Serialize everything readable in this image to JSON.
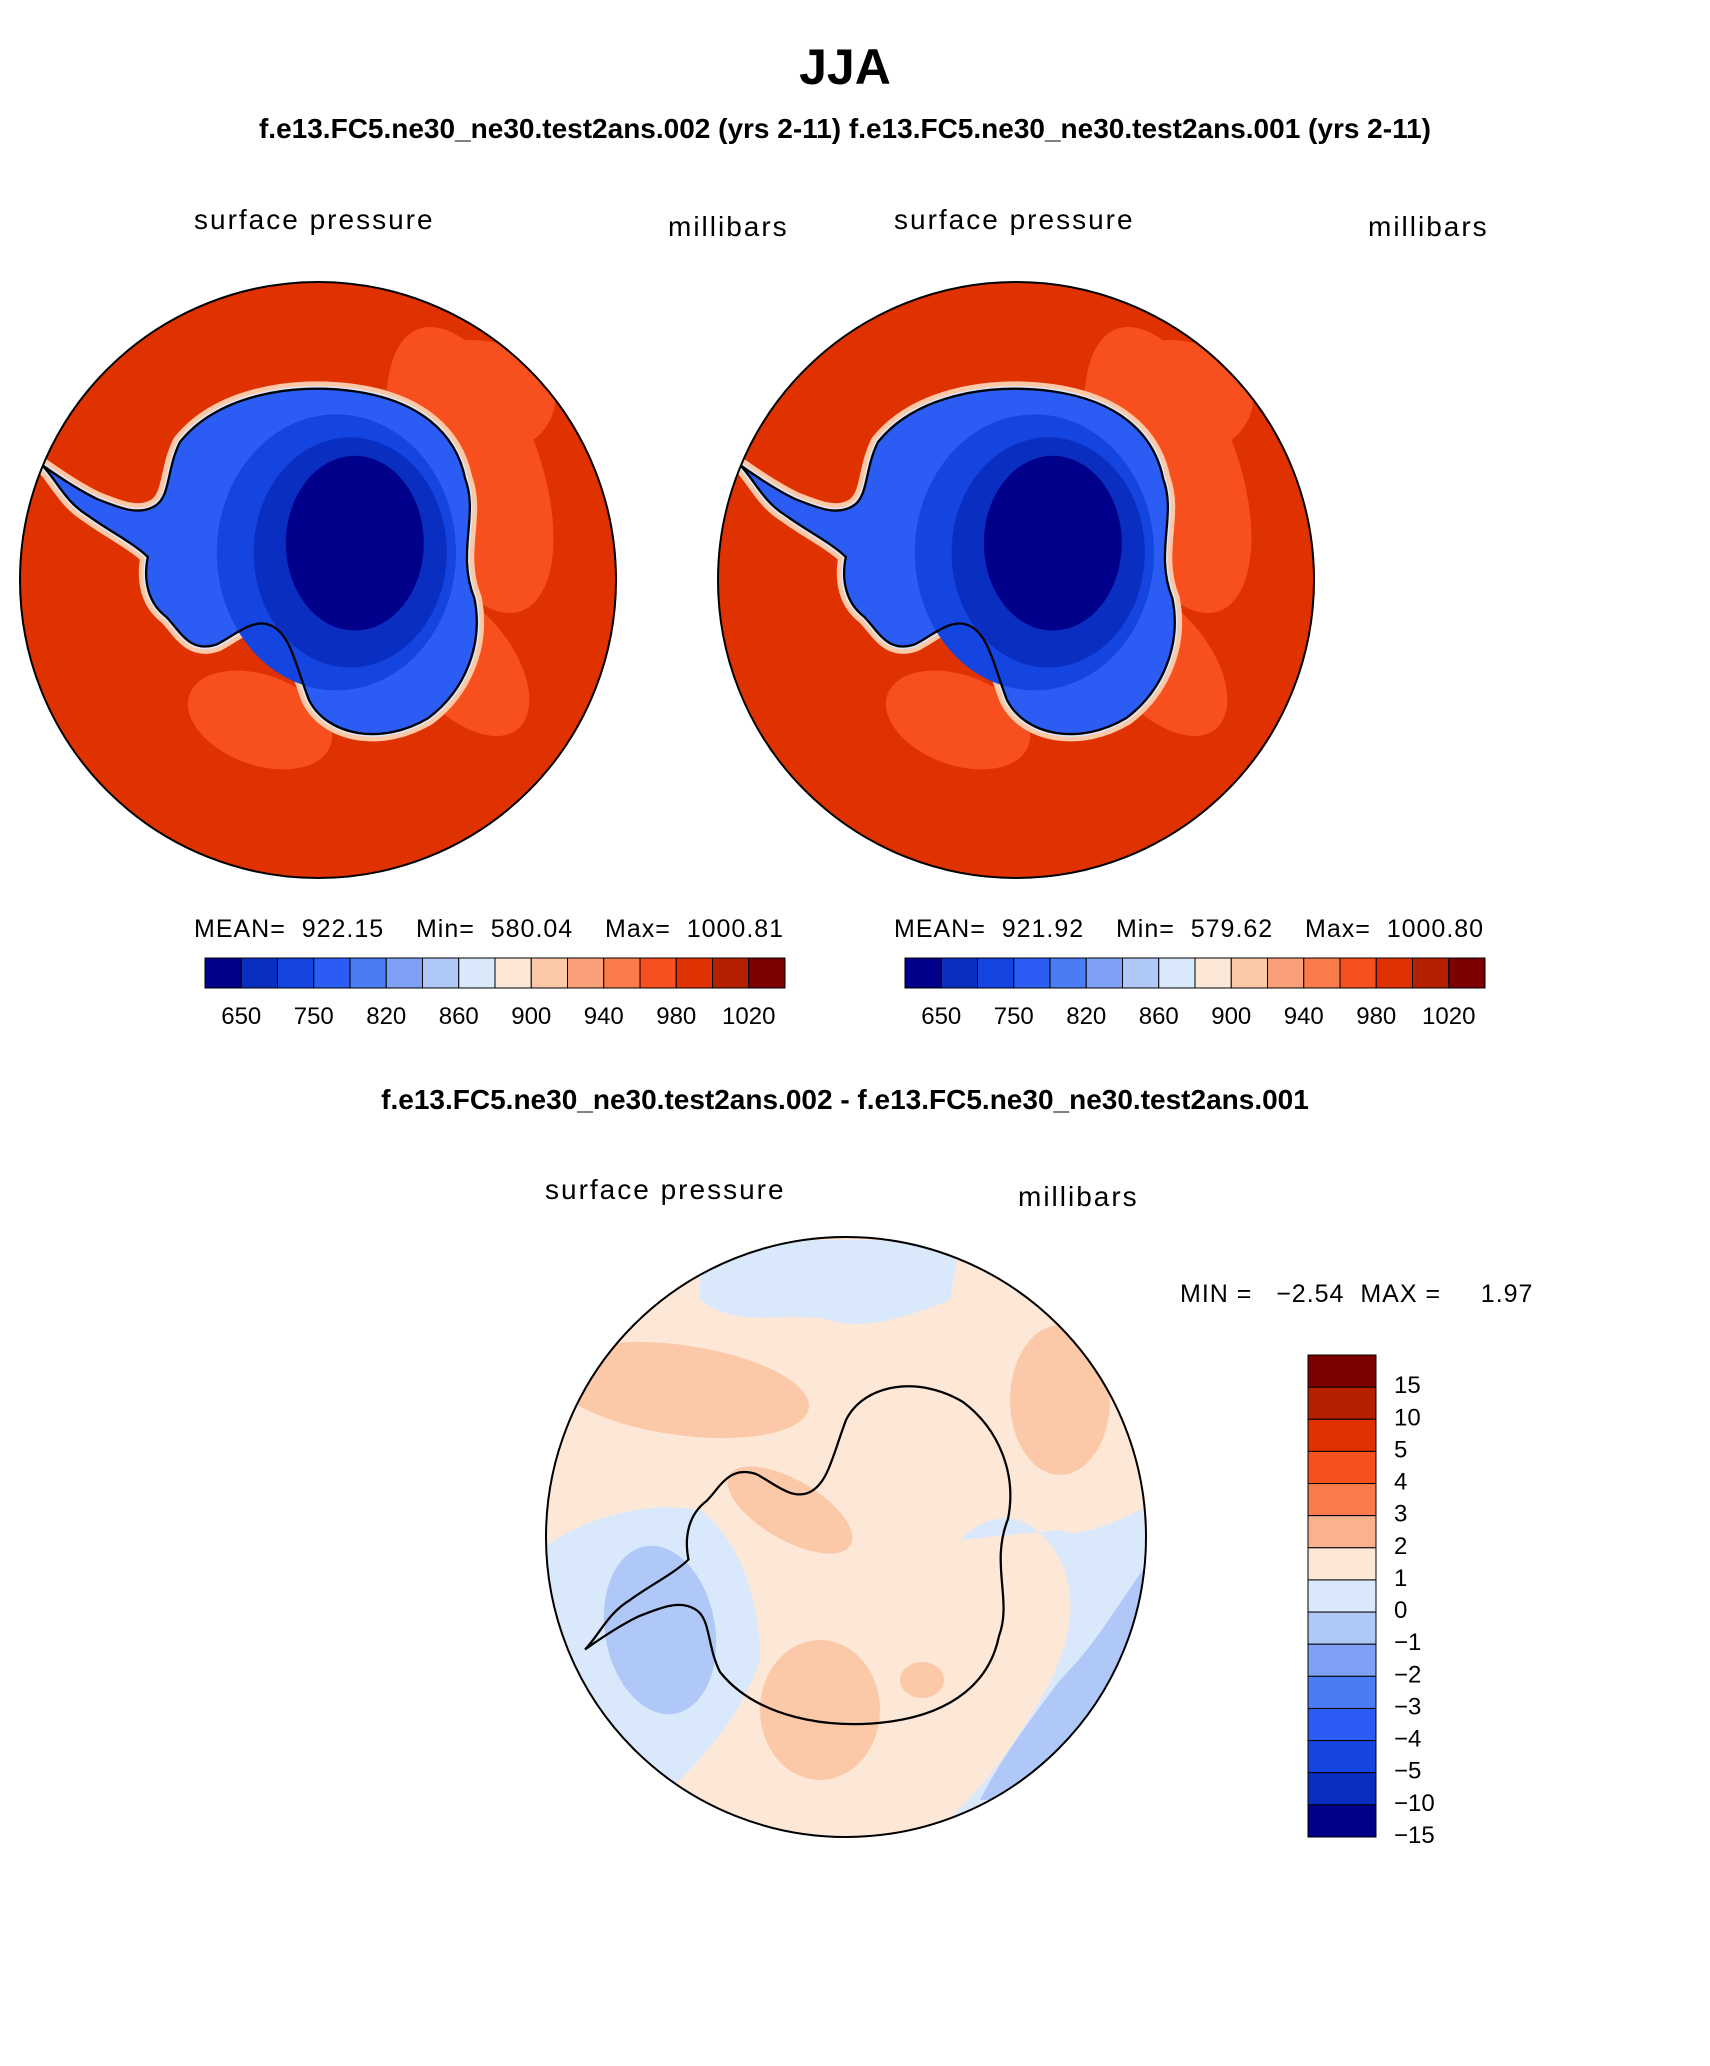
{
  "header": {
    "title": "JJA",
    "subtitle": "f.e13.FC5.ne30_ne30.test2ans.002 (yrs 2-11) f.e13.FC5.ne30_ne30.test2ans.001 (yrs 2-11)",
    "diff_title": "f.e13.FC5.ne30_ne30.test2ans.002 - f.e13.FC5.ne30_ne30.test2ans.001"
  },
  "panels": [
    {
      "variable": "surface pressure",
      "units": "millibars",
      "stats": "MEAN=  922.15    Min=  580.04    Max=  1000.81"
    },
    {
      "variable": "surface pressure",
      "units": "millibars",
      "stats": "MEAN=  921.92    Min=  579.62    Max=  1000.80"
    }
  ],
  "diff_panel": {
    "variable": "surface pressure",
    "units": "millibars",
    "minmax": "MIN =   −2.54  MAX =     1.97"
  },
  "colorbar_top": {
    "colors": [
      "#00008b",
      "#0a2fc0",
      "#1445e0",
      "#2b5df5",
      "#4a7cf5",
      "#7ea0f5",
      "#b0c8f7",
      "#d9e8fa",
      "#fde8d8",
      "#fbc8a8",
      "#f9a07a",
      "#f97a4a",
      "#f74f1e",
      "#e03200",
      "#b52000",
      "#7d0000"
    ],
    "labels": [
      "650",
      "750",
      "820",
      "860",
      "900",
      "940",
      "980",
      "1020"
    ]
  },
  "colorbar_diff": {
    "colors": [
      "#7d0000",
      "#b52000",
      "#e03200",
      "#f74f1e",
      "#f97a4a",
      "#fbb18e",
      "#fde8d8",
      "#d9e8fa",
      "#b0c8f7",
      "#7ea0f5",
      "#4a7cf5",
      "#2b5df5",
      "#1445e0",
      "#0a2fc0",
      "#00008b"
    ],
    "labels": [
      "15",
      "10",
      "5",
      "4",
      "3",
      "2",
      "1",
      "0",
      "−1",
      "−2",
      "−3",
      "−4",
      "−5",
      "−10",
      "−15"
    ]
  }
}
